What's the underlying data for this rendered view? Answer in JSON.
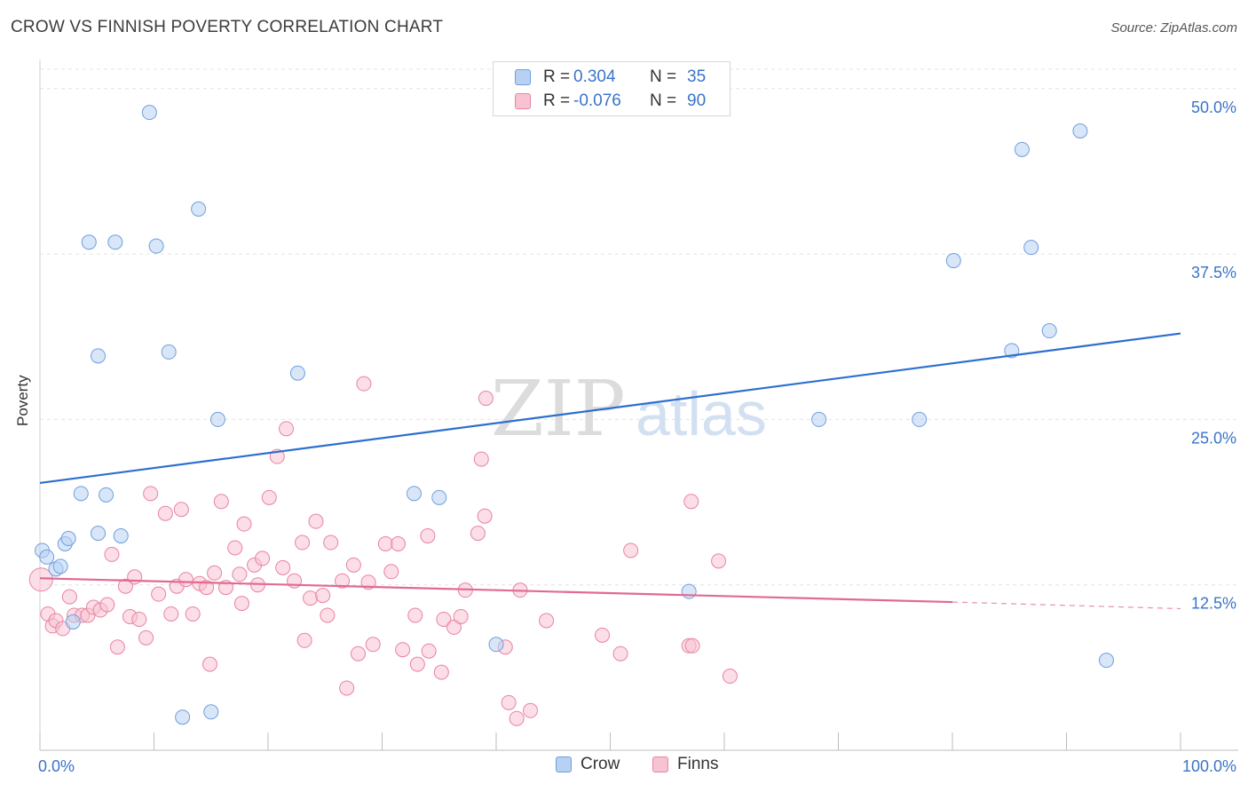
{
  "title": "CROW VS FINNISH POVERTY CORRELATION CHART",
  "source": "Source: ZipAtlas.com",
  "colors": {
    "crow_fill": "#b8d1f3",
    "crow_stroke": "#6e9fdd",
    "crow_line": "#2c6fcf",
    "finns_fill": "#f7c3d3",
    "finns_stroke": "#e8849f",
    "finns_line": "#e06a93",
    "axis_text": "#3a74c9",
    "grid": "#e3e3e3"
  },
  "legend": {
    "rows": [
      {
        "label": "R =",
        "r": "0.304",
        "n_label": "N =",
        "n": "35",
        "series": "crow"
      },
      {
        "label": "R =",
        "r": "-0.076",
        "n_label": "N =",
        "n": "90",
        "series": "finns"
      }
    ]
  },
  "chart_data": {
    "type": "scatter",
    "title": "CROW VS FINNISH POVERTY CORRELATION CHART",
    "xlabel": "",
    "ylabel": "Poverty",
    "xlim": [
      0,
      100
    ],
    "ylim": [
      0,
      52
    ],
    "x_tick_labels": [
      "0.0%",
      "100.0%"
    ],
    "y_ticks": [
      12.5,
      25.0,
      37.5,
      50.0
    ],
    "y_tick_labels": [
      "12.5%",
      "25.0%",
      "37.5%",
      "50.0%"
    ],
    "grid": true,
    "watermark": "ZIPatlas",
    "series": [
      {
        "name": "Crow",
        "r": 0.304,
        "n": 35,
        "trend": {
          "x": [
            0,
            100
          ],
          "y": [
            20.2,
            31.5
          ]
        },
        "points": [
          [
            0.2,
            15.1
          ],
          [
            0.6,
            14.6
          ],
          [
            1.4,
            13.7
          ],
          [
            1.8,
            13.9
          ],
          [
            2.2,
            15.6
          ],
          [
            2.5,
            16.0
          ],
          [
            2.9,
            9.7
          ],
          [
            3.6,
            19.4
          ],
          [
            4.3,
            38.4
          ],
          [
            5.1,
            29.8
          ],
          [
            5.1,
            16.4
          ],
          [
            5.8,
            19.3
          ],
          [
            6.6,
            38.4
          ],
          [
            7.1,
            16.2
          ],
          [
            9.6,
            48.2
          ],
          [
            10.2,
            38.1
          ],
          [
            11.3,
            30.1
          ],
          [
            12.5,
            2.5
          ],
          [
            13.9,
            40.9
          ],
          [
            15.0,
            2.9
          ],
          [
            15.6,
            25.0
          ],
          [
            22.6,
            28.5
          ],
          [
            32.8,
            19.4
          ],
          [
            35.0,
            19.1
          ],
          [
            40.0,
            8.0
          ],
          [
            56.9,
            12.0
          ],
          [
            68.3,
            25.0
          ],
          [
            77.1,
            25.0
          ],
          [
            80.1,
            37.0
          ],
          [
            85.2,
            30.2
          ],
          [
            86.1,
            45.4
          ],
          [
            86.9,
            38.0
          ],
          [
            88.5,
            31.7
          ],
          [
            91.2,
            46.8
          ],
          [
            93.5,
            6.8
          ]
        ]
      },
      {
        "name": "Finns",
        "r": -0.076,
        "n": 90,
        "trend": {
          "x": [
            0,
            80
          ],
          "y": [
            13.0,
            11.2
          ]
        },
        "trend_dashed": {
          "x": [
            80,
            100
          ],
          "y": [
            11.2,
            10.7
          ]
        },
        "points": [
          [
            0.1,
            12.9
          ],
          [
            0.7,
            10.3
          ],
          [
            1.1,
            9.4
          ],
          [
            1.4,
            9.8
          ],
          [
            2.0,
            9.2
          ],
          [
            2.6,
            11.6
          ],
          [
            3.0,
            10.2
          ],
          [
            3.7,
            10.2
          ],
          [
            4.2,
            10.2
          ],
          [
            4.7,
            10.8
          ],
          [
            5.3,
            10.6
          ],
          [
            5.9,
            11.0
          ],
          [
            6.3,
            14.8
          ],
          [
            6.8,
            7.8
          ],
          [
            7.5,
            12.4
          ],
          [
            7.9,
            10.1
          ],
          [
            8.3,
            13.1
          ],
          [
            8.7,
            9.9
          ],
          [
            9.3,
            8.5
          ],
          [
            9.7,
            19.4
          ],
          [
            10.4,
            11.8
          ],
          [
            11.0,
            17.9
          ],
          [
            11.5,
            10.3
          ],
          [
            12.0,
            12.4
          ],
          [
            12.4,
            18.2
          ],
          [
            12.8,
            12.9
          ],
          [
            13.4,
            10.3
          ],
          [
            14.0,
            12.6
          ],
          [
            14.6,
            12.3
          ],
          [
            14.9,
            6.5
          ],
          [
            15.3,
            13.4
          ],
          [
            15.9,
            18.8
          ],
          [
            16.3,
            12.3
          ],
          [
            17.1,
            15.3
          ],
          [
            17.5,
            13.3
          ],
          [
            17.7,
            11.1
          ],
          [
            17.9,
            17.1
          ],
          [
            18.8,
            14.0
          ],
          [
            19.1,
            12.5
          ],
          [
            19.5,
            14.5
          ],
          [
            20.1,
            19.1
          ],
          [
            20.8,
            22.2
          ],
          [
            21.3,
            13.8
          ],
          [
            21.6,
            24.3
          ],
          [
            22.3,
            12.8
          ],
          [
            23.0,
            15.7
          ],
          [
            23.2,
            8.3
          ],
          [
            23.7,
            11.5
          ],
          [
            24.2,
            17.3
          ],
          [
            24.8,
            11.7
          ],
          [
            25.2,
            10.2
          ],
          [
            25.5,
            15.7
          ],
          [
            26.5,
            12.8
          ],
          [
            26.9,
            4.7
          ],
          [
            27.5,
            14.0
          ],
          [
            27.9,
            7.3
          ],
          [
            28.4,
            27.7
          ],
          [
            28.8,
            12.7
          ],
          [
            29.2,
            8.0
          ],
          [
            30.3,
            15.6
          ],
          [
            30.8,
            13.5
          ],
          [
            31.4,
            15.6
          ],
          [
            31.8,
            7.6
          ],
          [
            32.9,
            10.2
          ],
          [
            33.1,
            6.5
          ],
          [
            34.0,
            16.2
          ],
          [
            34.1,
            7.5
          ],
          [
            35.2,
            5.9
          ],
          [
            35.4,
            9.9
          ],
          [
            36.3,
            9.3
          ],
          [
            36.9,
            10.1
          ],
          [
            37.3,
            12.1
          ],
          [
            38.4,
            16.4
          ],
          [
            38.7,
            22.0
          ],
          [
            39.0,
            17.7
          ],
          [
            39.1,
            26.6
          ],
          [
            40.8,
            7.8
          ],
          [
            41.1,
            3.6
          ],
          [
            41.8,
            2.4
          ],
          [
            42.1,
            12.1
          ],
          [
            43.0,
            3.0
          ],
          [
            44.4,
            9.8
          ],
          [
            49.3,
            8.7
          ],
          [
            50.9,
            7.3
          ],
          [
            51.8,
            15.1
          ],
          [
            56.9,
            7.9
          ],
          [
            57.1,
            18.8
          ],
          [
            57.2,
            7.9
          ],
          [
            59.5,
            14.3
          ],
          [
            60.5,
            5.6
          ]
        ]
      }
    ]
  },
  "bottom_legend": [
    {
      "label": "Crow",
      "series": "crow"
    },
    {
      "label": "Finns",
      "series": "finns"
    }
  ]
}
